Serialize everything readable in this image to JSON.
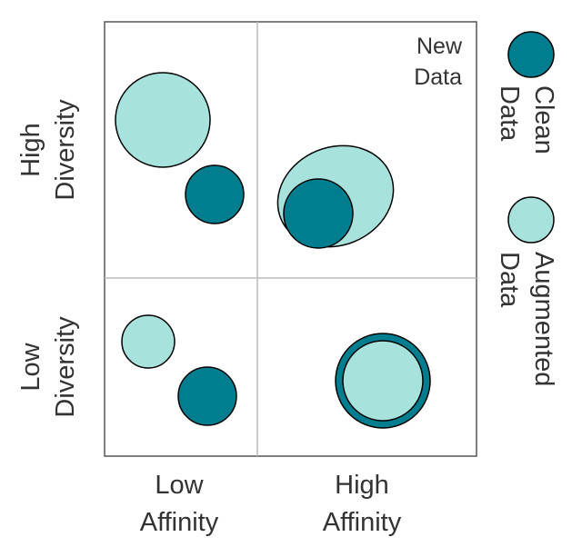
{
  "quadrant_text": {
    "line1": "New",
    "line2": "Data"
  },
  "y_axis": {
    "top": {
      "line1": "High",
      "line2": "Diversity"
    },
    "bottom": {
      "line1": "Low",
      "line2": "Diversity"
    }
  },
  "x_axis": {
    "left": {
      "line1": "Low",
      "line2": "Affinity"
    },
    "right": {
      "line1": "High",
      "line2": "Affinity"
    }
  },
  "legend": {
    "clean": {
      "line1": "Clean",
      "line2": "Data"
    },
    "augmented": {
      "line1": "Augmented",
      "line2": "Data"
    }
  },
  "colors": {
    "clean": "#007d8f",
    "augmented": "#a7e3dc",
    "outline": "#000000",
    "divider": "#bbbbbb",
    "border": "#555555",
    "text": "#333333"
  }
}
